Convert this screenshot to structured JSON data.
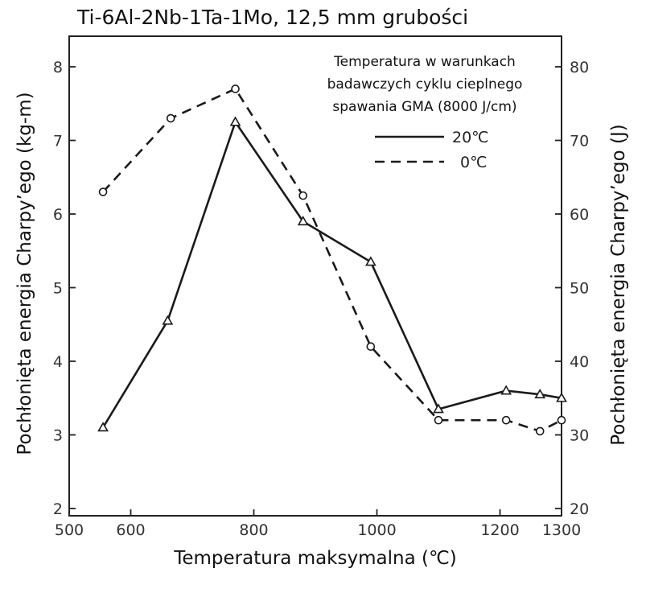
{
  "chart_data": {
    "type": "line",
    "title": "Ti-6Al-2Nb-1Ta-1Mo, 12,5 mm grubości",
    "xlabel": "Temperatura maksymalna (℃)",
    "ylabel_left": "Pochłonięta energia Charpy’ego (kg-m)",
    "ylabel_right": "Pochłonięta energia Charpy’ego (J)",
    "xlim": [
      500,
      1300
    ],
    "xticks": [
      "500",
      "600",
      "800",
      "1000",
      "1200",
      "1300"
    ],
    "xtick_values": [
      500,
      600,
      800,
      1000,
      1200,
      1300
    ],
    "ylim_left": [
      2,
      8
    ],
    "yticks_left": [
      "2",
      "3",
      "4",
      "5",
      "6",
      "7",
      "8"
    ],
    "ylim_right": [
      20,
      80
    ],
    "yticks_right": [
      "20",
      "30",
      "40",
      "50",
      "60",
      "70",
      "80"
    ],
    "legend_title": "Temperatura w warunkach badawczych cyklu cieplnego spawania GMA (8000 J/cm)",
    "legend_title_lines": [
      "Temperatura w warunkach",
      "badawczych cyklu cieplnego",
      "spawania GMA (8000 J/cm)"
    ],
    "legend_position": "top-right",
    "series": [
      {
        "name": "20℃",
        "style": "solid",
        "marker": "triangle",
        "x": [
          555,
          660,
          770,
          880,
          990,
          1100,
          1210,
          1265,
          1300
        ],
        "y": [
          3.1,
          4.55,
          7.25,
          5.9,
          5.35,
          3.35,
          3.6,
          3.55,
          3.5
        ]
      },
      {
        "name": "0℃",
        "style": "dashed",
        "marker": "circle",
        "x": [
          555,
          665,
          770,
          880,
          990,
          1100,
          1210,
          1265,
          1300
        ],
        "y": [
          6.3,
          7.3,
          7.7,
          6.25,
          4.2,
          3.2,
          3.2,
          3.05,
          3.2
        ]
      }
    ]
  }
}
